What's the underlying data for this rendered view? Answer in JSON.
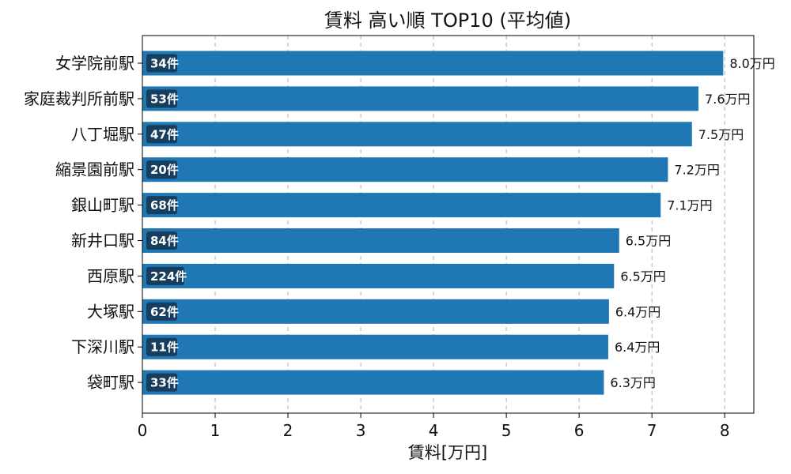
{
  "chart_data": {
    "type": "bar",
    "orientation": "horizontal",
    "title": "賃料 高い順 TOP10 (平均値)",
    "xlabel": "賃料[万円]",
    "ylabel": "",
    "xlim": [
      0,
      8.4
    ],
    "xticks": [
      0,
      1,
      2,
      3,
      4,
      5,
      6,
      7,
      8
    ],
    "grid": "x-dashed",
    "value_suffix": "万円",
    "count_suffix": "件",
    "colors": {
      "bar": "#1f77b4",
      "badge": "#173e5e"
    },
    "categories": [
      "女学院前駅",
      "家庭裁判所前駅",
      "八丁堀駅",
      "縮景園前駅",
      "銀山町駅",
      "新井口駅",
      "西原駅",
      "大塚駅",
      "下深川駅",
      "袋町駅"
    ],
    "values": [
      7.98,
      7.64,
      7.55,
      7.22,
      7.12,
      6.55,
      6.48,
      6.41,
      6.4,
      6.34
    ],
    "value_labels": [
      "8.0万円",
      "7.6万円",
      "7.5万円",
      "7.2万円",
      "7.1万円",
      "6.5万円",
      "6.5万円",
      "6.4万円",
      "6.4万円",
      "6.3万円"
    ],
    "counts": [
      34,
      53,
      47,
      20,
      68,
      84,
      224,
      62,
      11,
      33
    ],
    "count_labels": [
      "34件",
      "53件",
      "47件",
      "20件",
      "68件",
      "84件",
      "224件",
      "62件",
      "11件",
      "33件"
    ]
  }
}
